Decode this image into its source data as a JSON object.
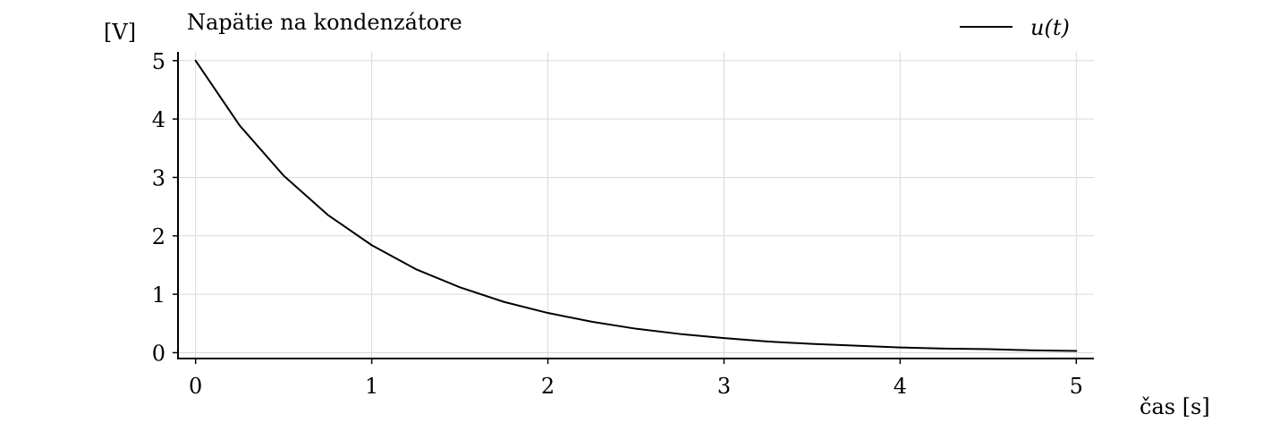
{
  "chart_data": {
    "type": "line",
    "title": "Napätie na kondenzátore",
    "xlabel": "čas [s]",
    "ylabel": "[V]",
    "xlim": [
      -0.1,
      5.1
    ],
    "ylim": [
      -0.1,
      5.15
    ],
    "xticks": [
      0,
      1,
      2,
      3,
      4,
      5
    ],
    "xtick_labels": [
      "0",
      "1",
      "2",
      "3",
      "4",
      "5"
    ],
    "yticks": [
      0,
      1,
      2,
      3,
      4,
      5
    ],
    "ytick_labels": [
      "0",
      "1",
      "2",
      "3",
      "4",
      "5"
    ],
    "grid": true,
    "legend_position": "top-right",
    "colors": {
      "line": "#000000",
      "grid": "#d9d9d9",
      "axis": "#000000"
    },
    "series": [
      {
        "name": "u(t)",
        "x": [
          0,
          0.25,
          0.5,
          0.75,
          1,
          1.25,
          1.5,
          1.75,
          2,
          2.25,
          2.5,
          2.75,
          3,
          3.25,
          3.5,
          3.75,
          4,
          4.25,
          4.5,
          4.75,
          5
        ],
        "y": [
          5.0,
          3.89,
          3.03,
          2.36,
          1.84,
          1.43,
          1.12,
          0.87,
          0.68,
          0.53,
          0.41,
          0.32,
          0.25,
          0.19,
          0.15,
          0.12,
          0.09,
          0.07,
          0.06,
          0.04,
          0.03
        ]
      }
    ]
  }
}
